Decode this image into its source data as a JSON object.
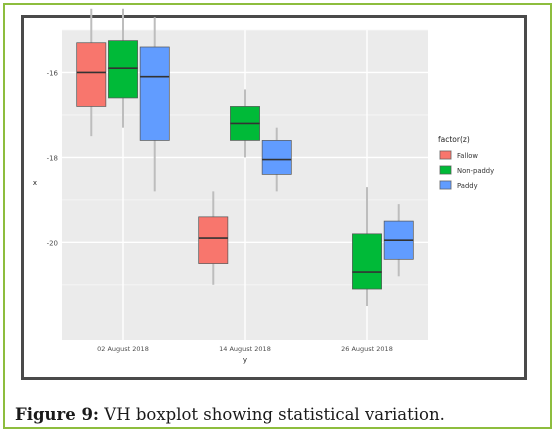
{
  "caption": {
    "label": "Figure 9:",
    "text": " VH boxplot showing statistical variation."
  },
  "chart_data": {
    "type": "boxplot",
    "xlabel": "y",
    "ylabel": "x",
    "categories": [
      "02 August 2018",
      "14 August 2018",
      "26 August 2018"
    ],
    "y_ticks": [
      -16,
      -18,
      -20
    ],
    "ylim": [
      -22.3,
      -15.0
    ],
    "grid": true,
    "background": "#ebebeb",
    "legend": {
      "title": "factor(z)",
      "position": "right"
    },
    "series": [
      {
        "name": "Fallow",
        "color": "#f8766d",
        "boxes": [
          {
            "category": "02 August 2018",
            "min": -17.5,
            "q1": -16.8,
            "median": -16.0,
            "q3": -15.3,
            "max": -14.5
          },
          {
            "category": "14 August 2018",
            "min": -21.0,
            "q1": -20.5,
            "median": -19.9,
            "q3": -19.4,
            "max": -18.8
          }
        ]
      },
      {
        "name": "Non-paddy",
        "color": "#00ba38",
        "boxes": [
          {
            "category": "02 August 2018",
            "min": -17.3,
            "q1": -16.6,
            "median": -15.9,
            "q3": -15.25,
            "max": -14.5
          },
          {
            "category": "14 August 2018",
            "min": -18.0,
            "q1": -17.6,
            "median": -17.2,
            "q3": -16.8,
            "max": -16.4
          },
          {
            "category": "26 August 2018",
            "min": -21.5,
            "q1": -21.1,
            "median": -20.7,
            "q3": -19.8,
            "max": -18.7
          }
        ]
      },
      {
        "name": "Paddy",
        "color": "#619cff",
        "boxes": [
          {
            "category": "02 August 2018",
            "min": -18.8,
            "q1": -17.6,
            "median": -16.1,
            "q3": -15.4,
            "max": -14.7
          },
          {
            "category": "14 August 2018",
            "min": -18.8,
            "q1": -18.4,
            "median": -18.05,
            "q3": -17.6,
            "max": -17.3
          },
          {
            "category": "26 August 2018",
            "min": -20.8,
            "q1": -20.4,
            "median": -19.95,
            "q3": -19.5,
            "max": -19.1
          }
        ]
      }
    ]
  }
}
